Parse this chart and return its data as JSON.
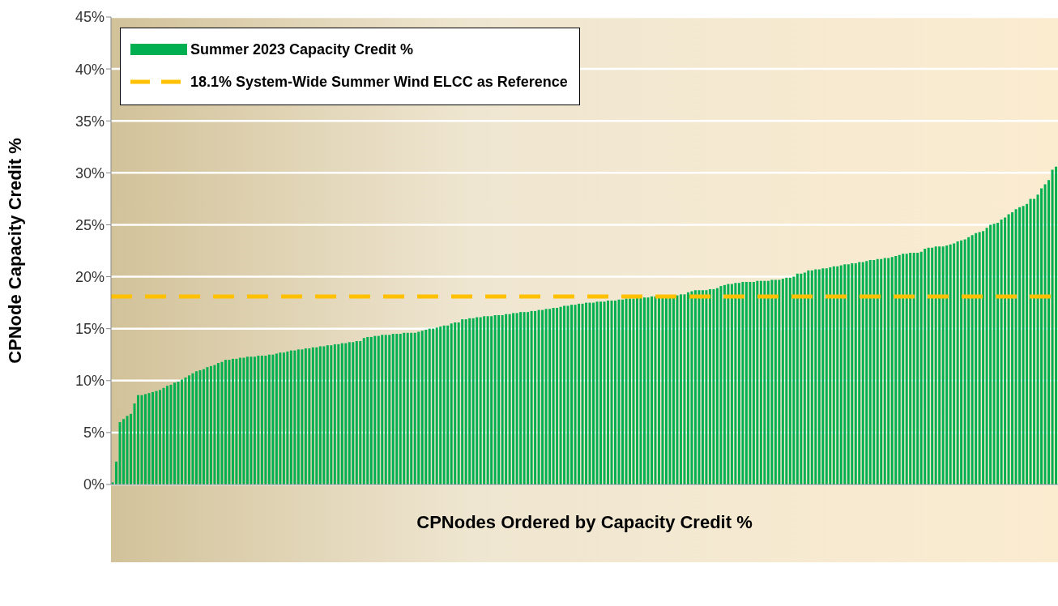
{
  "chart_data": {
    "type": "bar",
    "xlabel": "CPNodes Ordered by Capacity Credit %",
    "ylabel": "CPNode Capacity Credit %",
    "categories": [
      null,
      null,
      null,
      null,
      null,
      null,
      null,
      null,
      null,
      null,
      null,
      null,
      null,
      null,
      null,
      null,
      null,
      null,
      null,
      null,
      null,
      null,
      null,
      null,
      null,
      null,
      null,
      null,
      null,
      null,
      null,
      null,
      null,
      null,
      null,
      null,
      null,
      null,
      null,
      null,
      null,
      null,
      null,
      null,
      null,
      null,
      null,
      null,
      null,
      null,
      null,
      null,
      null,
      null,
      null,
      null,
      null,
      null,
      null,
      null,
      null,
      null,
      null,
      null,
      null,
      null,
      null,
      null,
      null,
      null,
      null,
      null,
      null,
      null,
      null,
      null,
      null,
      null,
      null,
      null,
      null,
      null,
      null,
      null,
      null,
      null,
      null,
      null,
      null,
      null,
      null,
      null,
      null,
      null,
      null,
      null,
      null,
      null,
      null,
      null,
      null,
      null,
      null,
      null,
      null,
      null,
      null,
      null,
      null,
      null,
      null,
      null,
      null,
      null,
      null,
      null,
      null,
      null,
      null,
      null,
      null,
      null,
      null,
      null,
      null,
      null,
      null,
      null,
      null,
      null,
      null,
      null,
      null,
      null,
      null,
      null,
      null,
      null,
      null,
      null,
      null,
      null,
      null,
      null,
      null,
      null,
      null,
      null,
      null,
      null,
      null,
      null,
      null,
      null,
      null,
      null,
      null,
      null,
      null,
      null,
      null,
      null,
      null,
      null,
      null,
      null,
      null,
      null,
      null,
      null,
      null,
      null,
      null,
      null,
      null,
      null,
      null,
      null,
      null,
      null,
      null,
      null,
      null,
      null,
      null,
      null,
      null,
      null,
      null,
      null,
      null,
      null,
      null,
      null,
      null,
      null,
      null,
      null,
      null,
      null,
      null,
      null,
      null,
      null,
      null,
      null,
      null,
      null,
      null,
      null,
      null,
      null,
      null,
      null,
      null,
      null,
      null,
      null,
      null,
      null,
      null,
      null,
      null,
      null,
      null,
      null,
      null,
      null,
      null,
      null,
      null,
      null,
      null,
      null,
      null,
      null,
      null,
      null,
      null,
      null,
      null,
      null,
      null,
      null,
      null,
      null,
      null,
      null,
      null,
      null,
      null,
      null,
      null,
      null,
      null,
      null,
      null,
      null,
      null,
      null
    ],
    "series": [
      {
        "name": "Summer 2023 Capacity Credit %",
        "color": "#00b050",
        "values": [
          0.2,
          2.2,
          6.0,
          6.3,
          6.6,
          6.8,
          7.8,
          8.6,
          8.6,
          8.7,
          8.8,
          8.9,
          9.0,
          9.1,
          9.3,
          9.5,
          9.6,
          9.8,
          9.9,
          10.1,
          10.3,
          10.5,
          10.7,
          10.9,
          11.0,
          11.1,
          11.3,
          11.4,
          11.5,
          11.7,
          11.8,
          12.0,
          12.0,
          12.1,
          12.1,
          12.2,
          12.2,
          12.3,
          12.3,
          12.3,
          12.4,
          12.4,
          12.4,
          12.5,
          12.5,
          12.6,
          12.7,
          12.7,
          12.8,
          12.9,
          12.9,
          13.0,
          13.0,
          13.1,
          13.1,
          13.2,
          13.2,
          13.3,
          13.3,
          13.4,
          13.4,
          13.5,
          13.5,
          13.6,
          13.6,
          13.7,
          13.7,
          13.8,
          13.8,
          14.1,
          14.2,
          14.2,
          14.3,
          14.3,
          14.4,
          14.4,
          14.4,
          14.5,
          14.5,
          14.5,
          14.6,
          14.6,
          14.6,
          14.6,
          14.7,
          14.8,
          14.9,
          15.0,
          15.0,
          15.1,
          15.2,
          15.3,
          15.3,
          15.5,
          15.6,
          15.6,
          15.9,
          15.9,
          16.0,
          16.0,
          16.1,
          16.1,
          16.2,
          16.2,
          16.2,
          16.3,
          16.3,
          16.3,
          16.4,
          16.4,
          16.5,
          16.5,
          16.6,
          16.6,
          16.6,
          16.7,
          16.7,
          16.8,
          16.8,
          16.9,
          16.9,
          17.0,
          17.0,
          17.1,
          17.2,
          17.2,
          17.3,
          17.3,
          17.4,
          17.4,
          17.5,
          17.5,
          17.5,
          17.6,
          17.6,
          17.6,
          17.7,
          17.7,
          17.7,
          17.8,
          17.8,
          17.9,
          17.9,
          17.9,
          18.0,
          18.0,
          18.0,
          18.0,
          18.1,
          18.1,
          18.1,
          18.2,
          18.2,
          18.2,
          18.2,
          18.2,
          18.3,
          18.3,
          18.5,
          18.6,
          18.7,
          18.7,
          18.7,
          18.7,
          18.8,
          18.8,
          18.9,
          19.1,
          19.2,
          19.3,
          19.3,
          19.4,
          19.4,
          19.5,
          19.5,
          19.5,
          19.5,
          19.6,
          19.6,
          19.6,
          19.6,
          19.7,
          19.7,
          19.7,
          19.8,
          19.9,
          19.9,
          20.0,
          20.3,
          20.3,
          20.4,
          20.6,
          20.6,
          20.7,
          20.7,
          20.8,
          20.8,
          20.9,
          21.0,
          21.0,
          21.1,
          21.2,
          21.2,
          21.3,
          21.3,
          21.4,
          21.4,
          21.5,
          21.6,
          21.6,
          21.7,
          21.7,
          21.8,
          21.8,
          21.9,
          22.0,
          22.1,
          22.2,
          22.2,
          22.3,
          22.3,
          22.3,
          22.4,
          22.7,
          22.8,
          22.8,
          22.9,
          22.9,
          22.9,
          23.0,
          23.1,
          23.2,
          23.4,
          23.5,
          23.6,
          23.8,
          24.0,
          24.2,
          24.3,
          24.4,
          24.7,
          25.0,
          25.1,
          25.2,
          25.5,
          25.7,
          26.0,
          26.2,
          26.5,
          26.7,
          26.8,
          27.0,
          27.5,
          27.5,
          27.9,
          28.5,
          28.9,
          29.3,
          30.3,
          30.6
        ]
      }
    ],
    "ref_lines": [
      {
        "axis": "y",
        "value": 18.1,
        "label": "18.1% System-Wide Summer Wind ELCC as Reference",
        "color": "#ffc000",
        "line_style": "dashed"
      }
    ],
    "ylim": [
      0,
      45
    ],
    "yticks": [
      {
        "value": 0,
        "label": "0%"
      },
      {
        "value": 5,
        "label": "5%"
      },
      {
        "value": 10,
        "label": "10%"
      },
      {
        "value": 15,
        "label": "15%"
      },
      {
        "value": 20,
        "label": "20%"
      },
      {
        "value": 25,
        "label": "25%"
      },
      {
        "value": 30,
        "label": "30%"
      },
      {
        "value": 35,
        "label": "35%"
      },
      {
        "value": 40,
        "label": "40%"
      },
      {
        "value": 45,
        "label": "45%"
      }
    ],
    "grid": "y",
    "legend": "top left",
    "tick_labels": "y"
  }
}
